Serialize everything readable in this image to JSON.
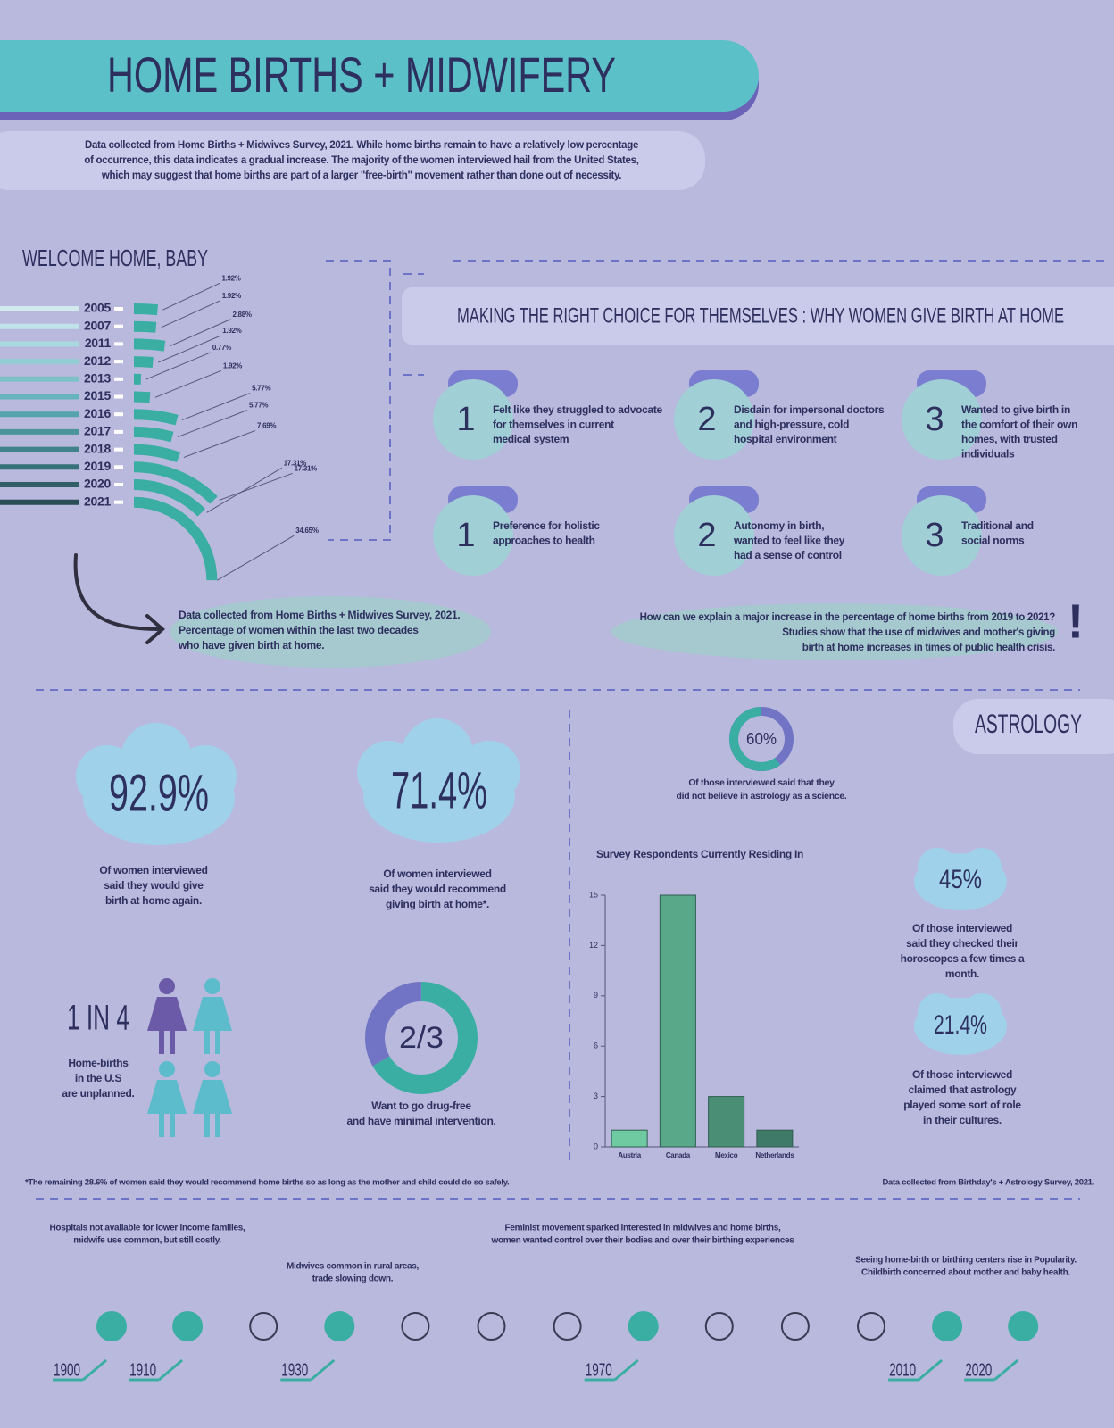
{
  "header": {
    "title": "HOME BIRTHS + MIDWIFERY",
    "intro": [
      "Data collected from Home Births + Midwives Survey, 2021. While home births remain to have a relatively low percentage",
      "of occurrence, this data indicates a gradual increase. The majority of the women interviewed hail from the United States,",
      "which may suggest that home births are part of a larger \"free-birth\" movement rather than done out of necessity."
    ]
  },
  "chart_data": [
    {
      "type": "arc",
      "title": "WELCOME HOME, BABY",
      "categories": [
        "2005",
        "2007",
        "2011",
        "2012",
        "2013",
        "2015",
        "2016",
        "2017",
        "2018",
        "2019",
        "2020",
        "2021"
      ],
      "values": [
        1.92,
        1.92,
        2.88,
        1.92,
        0.77,
        1.92,
        5.77,
        5.77,
        7.69,
        17.31,
        17.31,
        34.65
      ],
      "value_labels": [
        "1.92%",
        "1.92%",
        "2.88%",
        "1.92%",
        "0.77%",
        "1.92%",
        "5.77%",
        "5.77%",
        "7.69%",
        "17.31%",
        "17.31%",
        "34.65%"
      ],
      "color": "#3aaea3",
      "colors": [
        "#d2eaee",
        "#bfe3e8",
        "#a9d9de",
        "#92cdd3",
        "#7cc1c8",
        "#66b4bb",
        "#55a4ab",
        "#4a949a",
        "#40838a",
        "#377279",
        "#305f66",
        "#2a4e55"
      ]
    },
    {
      "type": "bar",
      "title": "Survey Respondents Currently Residing In",
      "categories": [
        "Austria",
        "Canada",
        "Mexico",
        "Netherlands"
      ],
      "values": [
        1,
        15,
        3,
        1
      ],
      "colors": [
        "#6fcaa2",
        "#5aa88a",
        "#4a8e75",
        "#3f7968"
      ],
      "ylim": [
        0,
        15
      ],
      "yticks": [
        0,
        3,
        6,
        9,
        12,
        15
      ]
    }
  ],
  "welcome_note": [
    "Data collected from Home Births + Midwives Survey, 2021.",
    "Percentage of women within the last two decades",
    "who have given birth at home."
  ],
  "reasons": {
    "title": "MAKING THE RIGHT CHOICE FOR THEMSELVES : WHY WOMEN GIVE BIRTH AT HOME",
    "items": [
      {
        "number": 1,
        "text": [
          "Felt like they struggled to advocate",
          "for themselves in current",
          "medical system"
        ]
      },
      {
        "number": 2,
        "text": [
          "Disdain for impersonal doctors",
          "and high-pressure, cold",
          "hospital environment"
        ]
      },
      {
        "number": 3,
        "text": [
          "Wanted to give birth in",
          "the comfort of their own",
          "homes, with trusted",
          "individuals"
        ]
      },
      {
        "number": 1,
        "text": [
          "Preference for holistic",
          "approaches to health"
        ]
      },
      {
        "number": 2,
        "text": [
          "Autonomy in birth,",
          "wanted to feel like they",
          "had a sense of control"
        ]
      },
      {
        "number": 3,
        "text": [
          "Traditional and",
          "social norms"
        ]
      }
    ]
  },
  "question": {
    "text": [
      "How can we explain a major increase in the percentage of home births from 2019 to 2021?",
      "Studies show that the use of midwives and mother's giving",
      "birth at home increases in times of public health crisis."
    ],
    "mark": "!"
  },
  "stats": {
    "home_again": {
      "label": "92.9%",
      "text": [
        "Of women interviewed",
        "said they would give",
        "birth at home again."
      ]
    },
    "recommend": {
      "label": "71.4%",
      "text": [
        "Of women interviewed",
        "said they would recommend",
        "giving birth at home*."
      ]
    },
    "unplanned": {
      "label": "1 IN 4",
      "numerator": 1,
      "denominator": 4,
      "text": [
        "Home-births",
        "in the U.S",
        "are unplanned."
      ]
    },
    "drug_free": {
      "label": "2/3",
      "numerator": 2,
      "denominator": 3,
      "text": [
        "Want to go drug-free",
        "and have minimal intervention."
      ]
    }
  },
  "astrology": {
    "title": "ASTROLOGY",
    "science": {
      "value": 60,
      "label": "60%",
      "text": [
        "Of those interviewed said that they",
        "did not believe in astrology as a science."
      ]
    },
    "horoscopes": {
      "label": "45%",
      "text": [
        "Of those interviewed",
        "said they checked their",
        "horoscopes a few times a",
        "month."
      ]
    },
    "culture": {
      "label": "21.4%",
      "text": [
        "Of those interviewed",
        "claimed that astrology",
        "played some sort of role",
        "in their cultures."
      ]
    }
  },
  "footnotes": {
    "left": "*The remaining 28.6% of women said they would recommend home births so as long as the mother and child could do so safely.",
    "right": "Data collected from Birthday's + Astrology Survey, 2021."
  },
  "timeline": {
    "years": [
      1900,
      1910,
      null,
      1930,
      null,
      null,
      null,
      1970,
      null,
      null,
      null,
      2010,
      2020
    ],
    "events": [
      {
        "text": [
          "Hospitals not available for lower income families,",
          "midwife use common, but still costly."
        ]
      },
      {
        "text": [
          "Midwives common in rural areas,",
          "trade slowing down."
        ]
      },
      {
        "text": [
          "Feminist movement sparked interested in midwives and home births,",
          "women wanted control over their bodies and over their birthing experiences"
        ]
      },
      {
        "text": [
          "Seeing home-birth or birthing centers rise in Popularity.",
          "Childbirth concerned about mother and baby health."
        ]
      }
    ]
  }
}
